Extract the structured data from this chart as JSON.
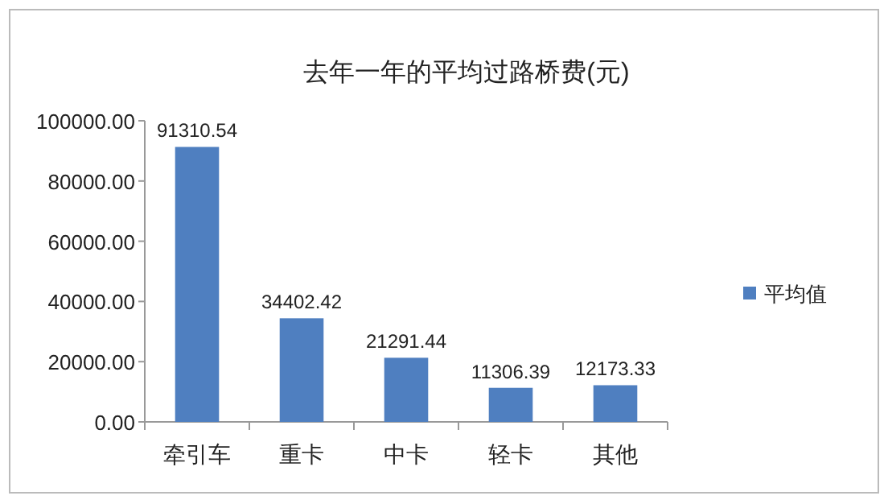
{
  "chart_data": {
    "type": "bar",
    "title": "去年一年的平均过路桥费(元)",
    "categories": [
      "牵引车",
      "重卡",
      "中卡",
      "轻卡",
      "其他"
    ],
    "series": [
      {
        "name": "平均值",
        "color": "#4f7fc0",
        "values": [
          91310.54,
          34402.42,
          21291.44,
          11306.39,
          12173.33
        ]
      }
    ],
    "ylim": [
      0,
      100000
    ],
    "yticks": [
      {
        "value": 0,
        "label": "0.00"
      },
      {
        "value": 20000,
        "label": "20000.00"
      },
      {
        "value": 40000,
        "label": "40000.00"
      },
      {
        "value": 60000,
        "label": "60000.00"
      },
      {
        "value": 80000,
        "label": "80000.00"
      },
      {
        "value": 100000,
        "label": "100000.00"
      }
    ],
    "data_labels": true,
    "legend": "right",
    "grid": false
  }
}
